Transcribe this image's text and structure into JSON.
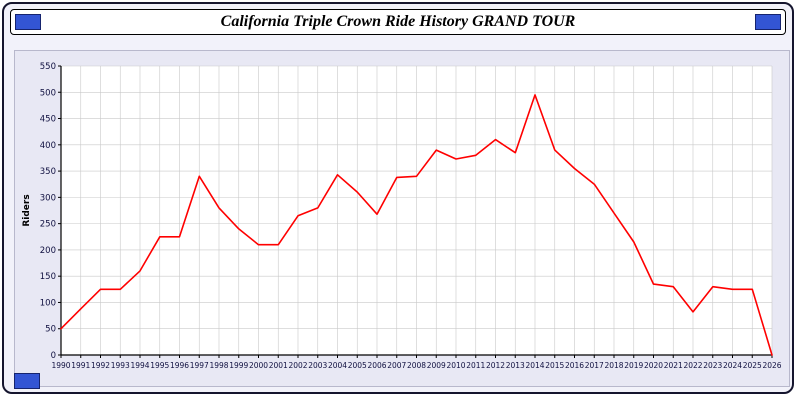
{
  "title": "California Triple Crown Ride History GRAND TOUR",
  "colors": {
    "line": "#ff0000",
    "accent_blue": "#3355d4",
    "accent_blue_border": "#16246e",
    "grid": "#c9c9c9",
    "axis": "#000000",
    "tick_label": "#101040",
    "plot_bg": "#ffffff",
    "chart_bg": "#e8e8f4"
  },
  "chart_data": {
    "type": "line",
    "title": "California Triple Crown Ride History GRAND TOUR",
    "xlabel": "",
    "ylabel": "Riders",
    "ylim": [
      0,
      550
    ],
    "ytick_step": 50,
    "grid": true,
    "legend": false,
    "x": [
      1990,
      1991,
      1992,
      1993,
      1994,
      1995,
      1996,
      1997,
      1998,
      1999,
      2000,
      2001,
      2002,
      2003,
      2004,
      2005,
      2006,
      2007,
      2008,
      2009,
      2010,
      2011,
      2012,
      2013,
      2014,
      2015,
      2016,
      2017,
      2018,
      2019,
      2020,
      2021,
      2022,
      2023,
      2024,
      2025,
      2026
    ],
    "series": [
      {
        "name": "Riders",
        "values": [
          50,
          88,
          125,
          125,
          160,
          225,
          225,
          340,
          280,
          240,
          210,
          210,
          265,
          280,
          343,
          310,
          268,
          338,
          340,
          390,
          373,
          380,
          410,
          385,
          495,
          390,
          355,
          325,
          270,
          215,
          135,
          130,
          82,
          130,
          125,
          125,
          0
        ]
      }
    ]
  }
}
